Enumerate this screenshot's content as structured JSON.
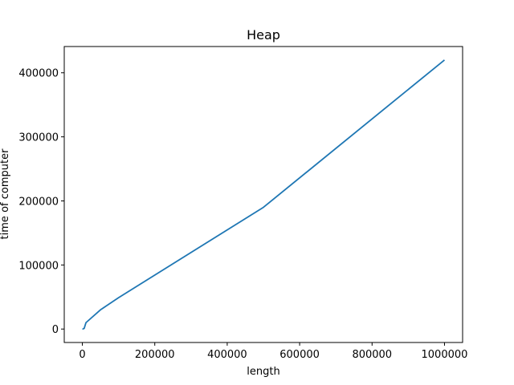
{
  "chart_data": {
    "type": "line",
    "title": "Heap",
    "xlabel": "length",
    "ylabel": "time of computer",
    "xlim": [
      -50000,
      1050000
    ],
    "ylim": [
      -21000,
      441000
    ],
    "xticks": [
      0,
      200000,
      400000,
      600000,
      800000,
      1000000
    ],
    "xtick_labels": [
      "0",
      "200000",
      "400000",
      "600000",
      "800000",
      "1000000"
    ],
    "yticks": [
      0,
      100000,
      200000,
      300000,
      400000
    ],
    "ytick_labels": [
      "0",
      "100000",
      "200000",
      "300000",
      "400000"
    ],
    "grid": false,
    "series": [
      {
        "color": "#1f77b4",
        "x": [
          100,
          1000,
          5000,
          10000,
          50000,
          100000,
          500000,
          1000000
        ],
        "y": [
          0,
          0,
          1000,
          10000,
          30000,
          49000,
          190000,
          420000
        ]
      }
    ]
  }
}
